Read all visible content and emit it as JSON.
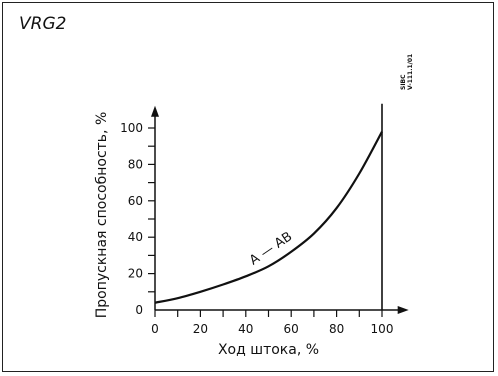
{
  "document": {
    "title": "VRG2",
    "code_line1": "SIBC",
    "code_line2": "V-111.1/01"
  },
  "chart_data": {
    "type": "line",
    "title": "VRG2",
    "xlabel": "Ход штока, %",
    "ylabel": "Пропускная способность, %",
    "xlim": [
      0,
      110
    ],
    "ylim": [
      0,
      110
    ],
    "xticks": [
      0,
      20,
      40,
      60,
      80,
      100
    ],
    "yticks": [
      0,
      20,
      40,
      60,
      80,
      100
    ],
    "x_minor_step": 10,
    "y_minor_step": 10,
    "grid": false,
    "reference_line_x": 100,
    "series": [
      {
        "name": "A — AB",
        "x": [
          0,
          10,
          20,
          30,
          40,
          50,
          60,
          70,
          80,
          90,
          100
        ],
        "y": [
          4,
          6.5,
          10,
          14,
          18.5,
          24,
          32,
          42,
          56,
          75,
          98
        ]
      }
    ]
  }
}
